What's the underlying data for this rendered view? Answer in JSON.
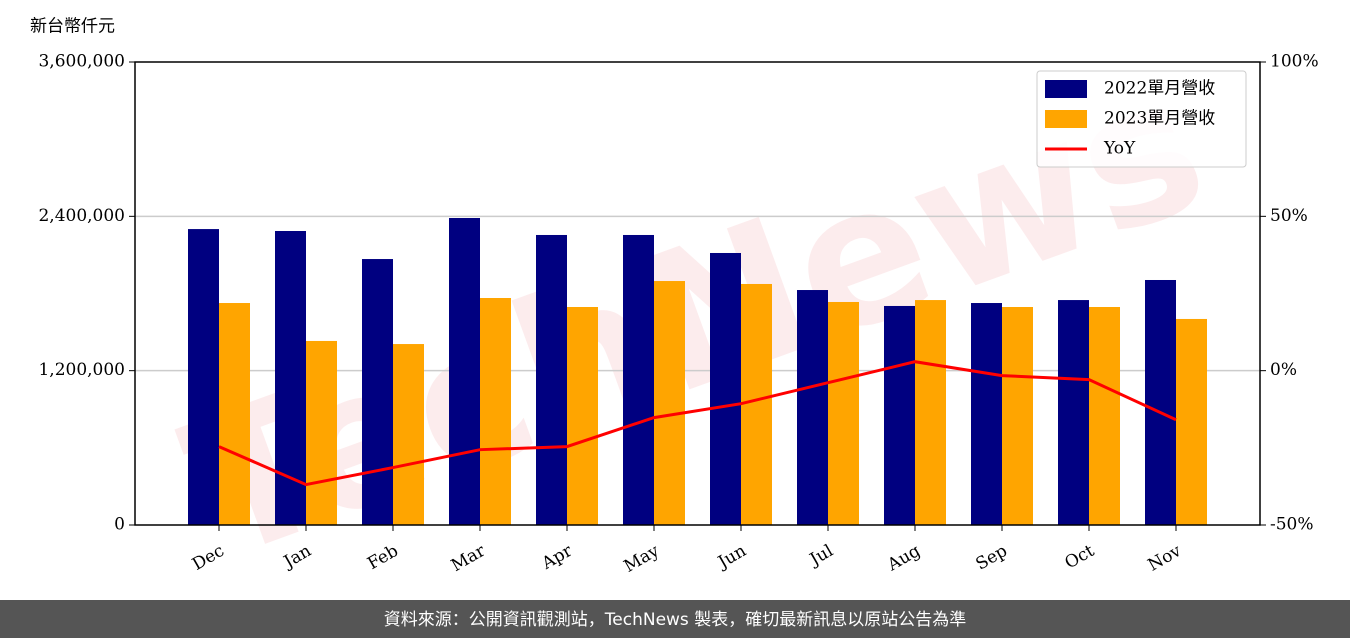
{
  "chart_data": {
    "type": "bar_line",
    "ylabel": "新台幣仟元",
    "watermark": "TechNews",
    "source": "資料來源：公開資訊觀測站，TechNews 製表，確切最新訊息以原站公告為準",
    "categories": [
      "Dec",
      "Jan",
      "Feb",
      "Mar",
      "Apr",
      "May",
      "Jun",
      "Jul",
      "Aug",
      "Sep",
      "Oct",
      "Nov"
    ],
    "series": [
      {
        "name": "2022單月營收",
        "color": "#000080",
        "type": "bar",
        "values": [
          2301000,
          2286000,
          2068000,
          2387000,
          2255000,
          2255000,
          2115000,
          1827000,
          1703000,
          1726000,
          1749000,
          1905000
        ]
      },
      {
        "name": "2023單月營收",
        "color": "#ffa500",
        "type": "bar",
        "values": [
          1726000,
          1431000,
          1407000,
          1765000,
          1695000,
          1897000,
          1874000,
          1734000,
          1749000,
          1695000,
          1695000,
          1602000
        ]
      },
      {
        "name": "YoY",
        "color": "#ff0000",
        "type": "line",
        "axis": "y2",
        "values": [
          -24.6,
          -36.9,
          -31.4,
          -25.6,
          -24.6,
          -15.2,
          -10.7,
          -3.9,
          2.9,
          -1.6,
          -2.9,
          -15.9
        ]
      }
    ],
    "ylim": [
      0,
      3600000
    ],
    "yticks": [
      0,
      {
        "value": 1200000,
        "label": "1,200,000"
      },
      {
        "value": 2400000,
        "label": "2,400,000"
      },
      {
        "value": 3600000,
        "label": "3,600,000"
      }
    ],
    "y2lim": [
      -50,
      100
    ],
    "y2ticks": [
      {
        "value": -50,
        "label": "-50%"
      },
      {
        "value": 0,
        "label": "0%"
      },
      {
        "value": 50,
        "label": "50%"
      },
      {
        "value": 100,
        "label": "100%"
      }
    ],
    "grid": true,
    "legend": "upper right"
  }
}
